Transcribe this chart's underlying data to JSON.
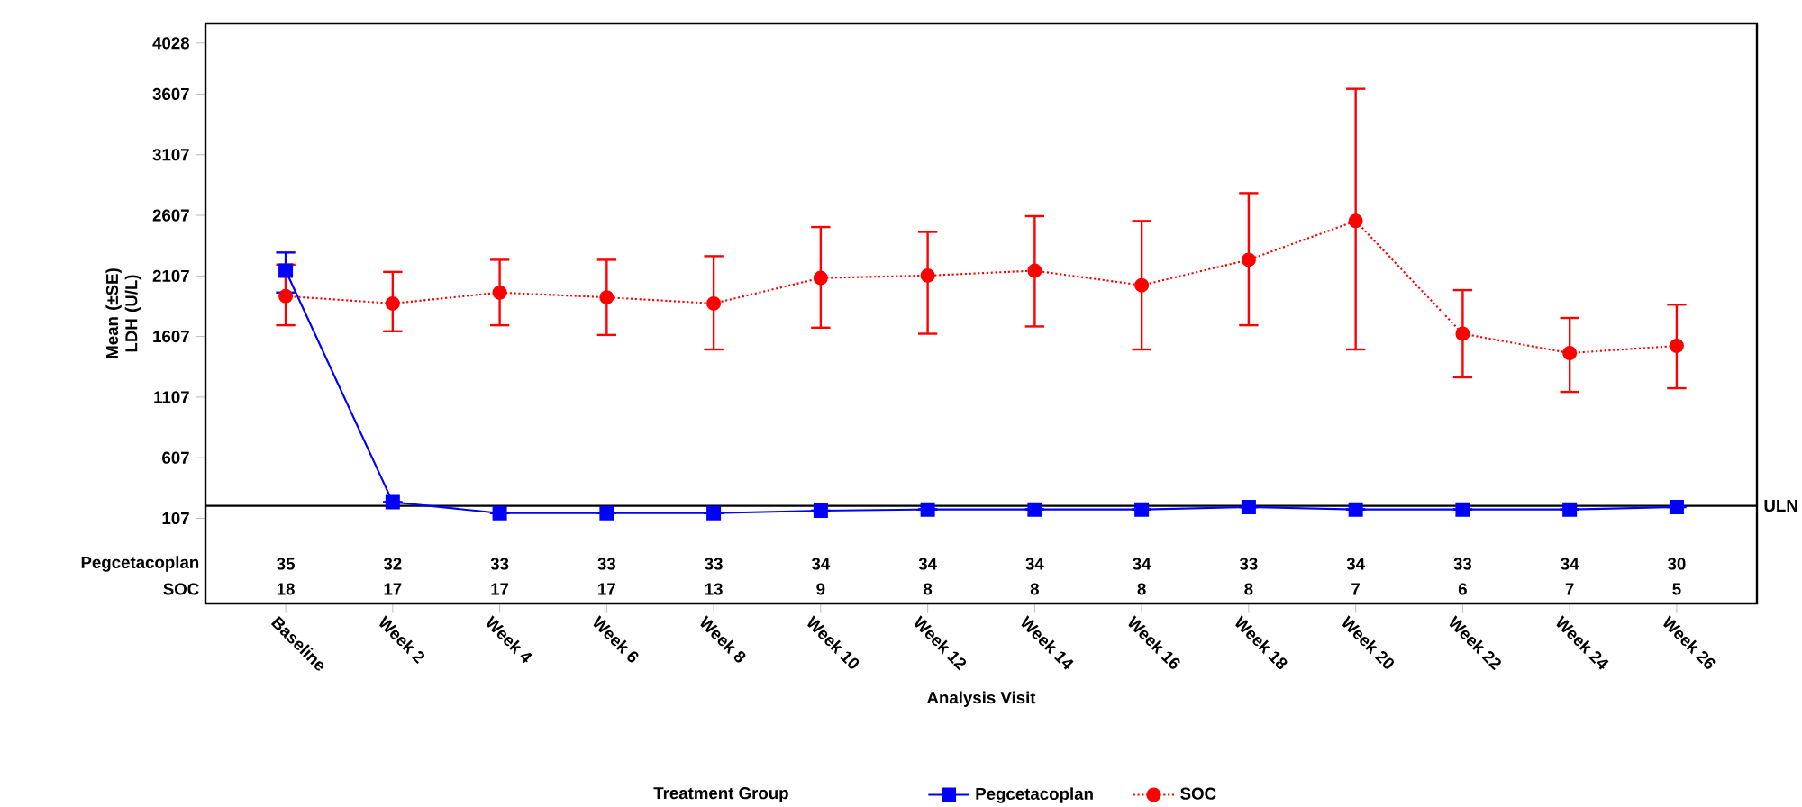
{
  "chart_data": {
    "type": "line",
    "xlabel": "Analysis Visit",
    "ylabel": "Mean (±SE) LDH (U/L)",
    "legend_title": "Treatment Group",
    "legend": "bottom",
    "categories": [
      "Baseline",
      "Week 2",
      "Week 4",
      "Week 6",
      "Week 8",
      "Week 10",
      "Week 12",
      "Week 14",
      "Week 16",
      "Week 18",
      "Week 20",
      "Week 22",
      "Week 24",
      "Week 26"
    ],
    "ylim": [
      -595,
      4190
    ],
    "yticks": [
      107,
      607,
      1107,
      1607,
      2107,
      2607,
      3107,
      3607,
      4028
    ],
    "series": [
      {
        "name": "Pegcetacoplan",
        "color": "#0000ff",
        "marker": "square",
        "line_style": "solid",
        "values": [
          2150,
          240,
          150,
          150,
          150,
          170,
          180,
          180,
          180,
          200,
          180,
          180,
          180,
          200
        ],
        "errors": [
          [
            1970,
            2300
          ],
          null,
          null,
          null,
          null,
          null,
          null,
          null,
          null,
          null,
          null,
          null,
          null,
          null
        ]
      },
      {
        "name": "SOC",
        "color": "#ff0000",
        "marker": "circle",
        "line_style": "dotted",
        "values": [
          1940,
          1880,
          1970,
          1930,
          1880,
          2090,
          2110,
          2150,
          2030,
          2240,
          2560,
          1630,
          1470,
          1530
        ],
        "errors": [
          [
            1700,
            2200
          ],
          [
            1650,
            2140
          ],
          [
            1700,
            2240
          ],
          [
            1620,
            2240
          ],
          [
            1500,
            2270
          ],
          [
            1680,
            2510
          ],
          [
            1630,
            2470
          ],
          [
            1690,
            2600
          ],
          [
            1500,
            2560
          ],
          [
            1700,
            2790
          ],
          [
            1500,
            3650
          ],
          [
            1270,
            1990
          ],
          [
            1150,
            1760
          ],
          [
            1180,
            1870
          ]
        ]
      }
    ],
    "ref_lines": [
      {
        "axis": "y",
        "value": 210,
        "label": "ULN",
        "color": "#000000"
      }
    ],
    "annotations": [
      "35",
      "32",
      "33",
      "33",
      "33",
      "34",
      "34",
      "34",
      "34",
      "33",
      "34",
      "33",
      "34",
      "30",
      "18",
      "17",
      "17",
      "17",
      "13",
      "9",
      "8",
      "8",
      "8",
      "8",
      "7",
      "6",
      "7",
      "5"
    ]
  }
}
